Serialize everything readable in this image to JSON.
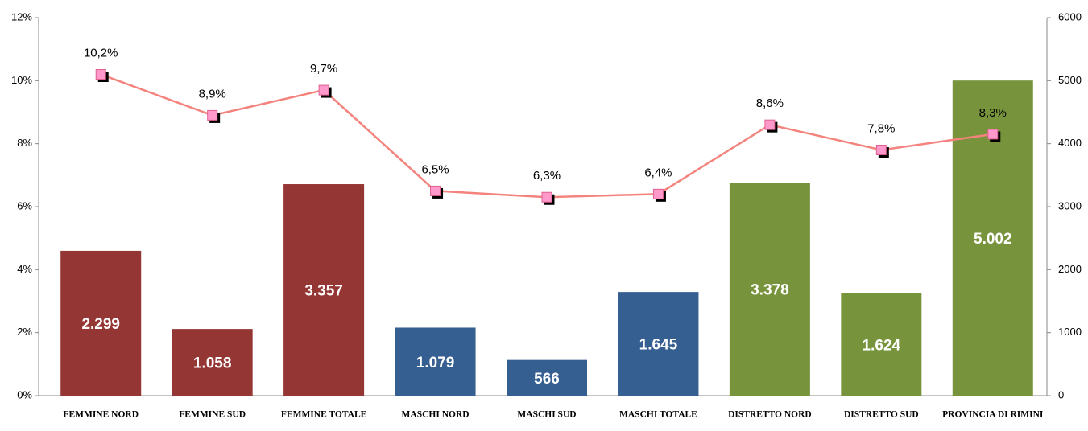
{
  "chart_data": {
    "type": "bar-line",
    "categories": [
      "FEMMINE NORD",
      "FEMMINE SUD",
      "FEMMINE TOTALE",
      "MASCHI NORD",
      "MASCHI SUD",
      "MASCHI TOTALE",
      "DISTRETTO NORD",
      "DISTRETTO SUD",
      "PROVINCIA DI RIMINI"
    ],
    "series": [
      {
        "kind": "bar",
        "axis": "y2",
        "colors": [
          "#943634",
          "#943634",
          "#943634",
          "#355e91",
          "#355e91",
          "#355e91",
          "#77933c",
          "#77933c",
          "#77933c"
        ],
        "values": [
          2299,
          1058,
          3357,
          1079,
          566,
          1645,
          3378,
          1624,
          5002
        ],
        "value_labels": [
          "2.299",
          "1.058",
          "3.357",
          "1.079",
          "566",
          "1.645",
          "3.378",
          "1.624",
          "5.002"
        ]
      },
      {
        "kind": "line",
        "axis": "y",
        "color": "#f4837d",
        "marker_color": "#ff99cc",
        "values": [
          10.2,
          8.9,
          9.7,
          6.5,
          6.3,
          6.4,
          8.6,
          7.8,
          8.3
        ],
        "value_labels": [
          "10,2%",
          "8,9%",
          "9,7%",
          "6,5%",
          "6,3%",
          "6,4%",
          "8,6%",
          "7,8%",
          "8,3%"
        ]
      }
    ],
    "ylim": [
      0,
      12
    ],
    "yticks": [
      {
        "value": 0,
        "label": "0%"
      },
      {
        "value": 2,
        "label": "2%"
      },
      {
        "value": 4,
        "label": "4%"
      },
      {
        "value": 6,
        "label": "6%"
      },
      {
        "value": 8,
        "label": "8%"
      },
      {
        "value": 10,
        "label": "10%"
      },
      {
        "value": 12,
        "label": "12%"
      }
    ],
    "y2lim": [
      0,
      6000
    ],
    "y2ticks": [
      0,
      1000,
      2000,
      3000,
      4000,
      5000,
      6000
    ]
  }
}
